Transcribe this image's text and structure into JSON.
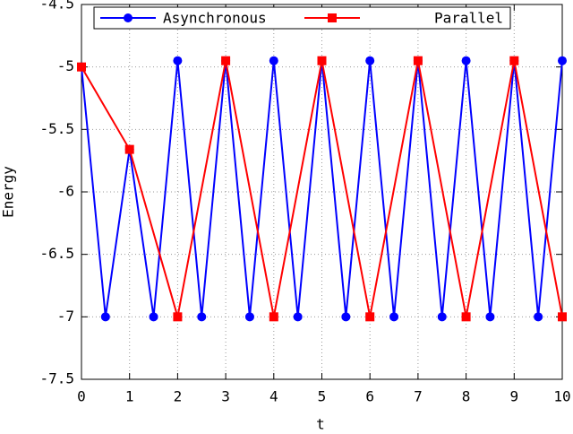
{
  "chart_data": {
    "type": "line",
    "x_label": "t",
    "y_label": "Energy",
    "xlim": [
      0,
      10
    ],
    "ylim": [
      -7.5,
      -4.5
    ],
    "xticks": [
      0,
      1,
      2,
      3,
      4,
      5,
      6,
      7,
      8,
      9,
      10
    ],
    "yticks": [
      -7.5,
      -7,
      -6.5,
      -6,
      -5.5,
      -5,
      -4.5
    ],
    "grid": true,
    "legend": "top",
    "series": [
      {
        "name": "Asynchronous",
        "color": "#0000ff",
        "marker": "circle",
        "x": [
          0,
          0.5,
          1,
          1.5,
          2,
          2.5,
          3,
          3.5,
          4,
          4.5,
          5,
          5.5,
          6,
          6.5,
          7,
          7.5,
          8,
          8.5,
          9,
          9.5,
          10
        ],
        "values": [
          -5,
          -7,
          -5.66,
          -7,
          -4.95,
          -7,
          -4.95,
          -7,
          -4.95,
          -7,
          -4.95,
          -7,
          -4.95,
          -7,
          -4.95,
          -7,
          -4.95,
          -7,
          -4.95,
          -7,
          -4.95
        ]
      },
      {
        "name": "Parallel",
        "color": "#ff0000",
        "marker": "square",
        "x": [
          0,
          1,
          2,
          3,
          4,
          5,
          6,
          7,
          8,
          9,
          10
        ],
        "values": [
          -5,
          -5.66,
          -7,
          -4.95,
          -7,
          -4.95,
          -7,
          -4.95,
          -7,
          -4.95,
          -7
        ]
      }
    ]
  }
}
